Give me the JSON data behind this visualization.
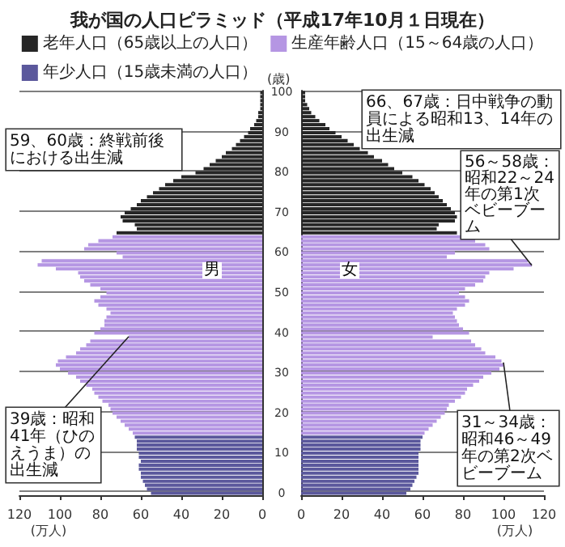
{
  "chart_data": [
    {
      "type": "bar",
      "orientation": "horizontal",
      "title": "我が国の人口ピラミッド（平成17年10月１日現在）",
      "ylabel": "(歳)",
      "xlabel": "(万人)",
      "categories": [
        "100",
        null,
        null,
        null,
        null,
        null,
        null,
        null,
        null,
        null,
        "90",
        null,
        null,
        null,
        null,
        null,
        null,
        null,
        null,
        null,
        "80",
        null,
        null,
        null,
        null,
        null,
        null,
        null,
        null,
        null,
        "70",
        null,
        null,
        null,
        null,
        null,
        null,
        null,
        null,
        null,
        "60",
        null,
        null,
        null,
        null,
        null,
        null,
        null,
        null,
        null,
        "50",
        null,
        null,
        null,
        null,
        null,
        null,
        null,
        null,
        null,
        "40",
        null,
        null,
        null,
        null,
        null,
        null,
        null,
        null,
        null,
        "30",
        null,
        null,
        null,
        null,
        null,
        null,
        null,
        null,
        null,
        "20",
        null,
        null,
        null,
        null,
        null,
        null,
        null,
        null,
        null,
        "10",
        null,
        null,
        null,
        null,
        null,
        null,
        null,
        null,
        null,
        "0"
      ],
      "series": [
        {
          "color": "#262626",
          "values": [
            1,
            1,
            1,
            1,
            1,
            2,
            2,
            3,
            4,
            6,
            7,
            9,
            11,
            13,
            15,
            18,
            20,
            23,
            26,
            29,
            33,
            40,
            44,
            48,
            51,
            54,
            57,
            60,
            62,
            65,
            68,
            70,
            69,
            63,
            62,
            72,
            null,
            null,
            null,
            null,
            null,
            null,
            null,
            null,
            null,
            null,
            null,
            null,
            null,
            null,
            null,
            null,
            null,
            null,
            null,
            null,
            null,
            null,
            null,
            null,
            null,
            null,
            null,
            null,
            null,
            null,
            null,
            null,
            null,
            null,
            null,
            null,
            null,
            null,
            null,
            null,
            null,
            null,
            null,
            null,
            null,
            null,
            null,
            null,
            null,
            null,
            null,
            null,
            null,
            null,
            null,
            null,
            null,
            null,
            null,
            null,
            null,
            null,
            null,
            null,
            null
          ]
        },
        {
          "color": "#b596e3",
          "values": [
            null,
            null,
            null,
            null,
            null,
            null,
            null,
            null,
            null,
            null,
            null,
            null,
            null,
            null,
            null,
            null,
            null,
            null,
            null,
            null,
            null,
            null,
            null,
            null,
            null,
            null,
            null,
            null,
            null,
            null,
            null,
            null,
            null,
            null,
            null,
            null,
            74,
            81,
            86,
            88,
            72,
            69,
            109,
            111,
            102,
            91,
            90,
            88,
            85,
            80,
            77,
            80,
            83,
            81,
            77,
            75,
            77,
            78,
            78,
            80,
            83,
            66,
            85,
            87,
            90,
            92,
            97,
            101,
            102,
            100,
            96,
            92,
            90,
            87,
            84,
            83,
            81,
            79,
            76,
            75,
            74,
            72,
            70,
            68,
            66,
            64,
            null,
            null,
            null,
            null,
            null,
            null,
            null,
            null,
            null,
            null,
            null,
            null,
            null,
            null,
            null
          ]
        },
        {
          "color": "#5b589c",
          "values": [
            null,
            null,
            null,
            null,
            null,
            null,
            null,
            null,
            null,
            null,
            null,
            null,
            null,
            null,
            null,
            null,
            null,
            null,
            null,
            null,
            null,
            null,
            null,
            null,
            null,
            null,
            null,
            null,
            null,
            null,
            null,
            null,
            null,
            null,
            null,
            null,
            null,
            null,
            null,
            null,
            null,
            null,
            null,
            null,
            null,
            null,
            null,
            null,
            null,
            null,
            null,
            null,
            null,
            null,
            null,
            null,
            null,
            null,
            null,
            null,
            null,
            null,
            null,
            null,
            null,
            null,
            null,
            null,
            null,
            null,
            null,
            null,
            null,
            null,
            null,
            null,
            null,
            null,
            null,
            null,
            null,
            null,
            null,
            null,
            null,
            null,
            63,
            62,
            62,
            62,
            61,
            61,
            60,
            61,
            61,
            60,
            60,
            59,
            58,
            57,
            55
          ]
        }
      ],
      "xlim": [
        120,
        0
      ],
      "xticks": [
        120,
        100,
        80,
        60,
        40,
        20,
        0
      ],
      "grid": "y",
      "annotations": [
        "59、60歳：終戦前後における出生減",
        {
          "text": "39歳：昭和41年（ひのえうま）の出生減",
          "x": 66
        },
        "男"
      ]
    },
    {
      "type": "bar",
      "orientation": "horizontal",
      "xlabel": "(万人)",
      "legend": "top",
      "tick_labels": "x",
      "categories": [
        "100",
        null,
        null,
        null,
        null,
        null,
        null,
        null,
        null,
        null,
        "90",
        null,
        null,
        null,
        null,
        null,
        null,
        null,
        null,
        null,
        "80",
        null,
        null,
        null,
        null,
        null,
        null,
        null,
        null,
        null,
        "70",
        null,
        null,
        null,
        null,
        null,
        null,
        null,
        null,
        null,
        "60",
        null,
        null,
        null,
        null,
        null,
        null,
        null,
        null,
        null,
        "50",
        null,
        null,
        null,
        null,
        null,
        null,
        null,
        null,
        null,
        "40",
        null,
        null,
        null,
        null,
        null,
        null,
        null,
        null,
        null,
        "30",
        null,
        null,
        null,
        null,
        null,
        null,
        null,
        null,
        null,
        "20",
        null,
        null,
        null,
        null,
        null,
        null,
        null,
        null,
        null,
        "10",
        null,
        null,
        null,
        null,
        null,
        null,
        null,
        null,
        null,
        "0"
      ],
      "series": [
        {
          "name": "老年人口（65歳以上の人口）",
          "color": "#262626",
          "values": [
            2,
            2,
            2,
            3,
            4,
            5,
            7,
            9,
            12,
            14,
            17,
            20,
            23,
            26,
            29,
            33,
            36,
            40,
            43,
            46,
            50,
            55,
            58,
            61,
            64,
            66,
            68,
            70,
            72,
            74,
            76,
            77,
            76,
            68,
            67,
            77,
            null,
            null,
            null,
            null,
            null,
            null,
            null,
            null,
            null,
            null,
            null,
            null,
            null,
            null,
            null,
            null,
            null,
            null,
            null,
            null,
            null,
            null,
            null,
            null,
            null,
            null,
            null,
            null,
            null,
            null,
            null,
            null,
            null,
            null,
            null,
            null,
            null,
            null,
            null,
            null,
            null,
            null,
            null,
            null,
            null,
            null,
            null,
            null,
            null,
            null,
            null,
            null,
            null,
            null,
            null,
            null,
            null,
            null,
            null,
            null,
            null,
            null,
            null,
            null,
            null
          ]
        },
        {
          "name": "生産年齢人口（15～64歳の人口）",
          "color": "#b596e3",
          "values": [
            null,
            null,
            null,
            null,
            null,
            null,
            null,
            null,
            null,
            null,
            null,
            null,
            null,
            null,
            null,
            null,
            null,
            null,
            null,
            null,
            null,
            null,
            null,
            null,
            null,
            null,
            null,
            null,
            null,
            null,
            null,
            null,
            null,
            null,
            null,
            null,
            79,
            86,
            91,
            93,
            76,
            72,
            112,
            114,
            105,
            93,
            91,
            90,
            86,
            81,
            78,
            81,
            83,
            81,
            77,
            75,
            76,
            77,
            78,
            80,
            83,
            65,
            84,
            86,
            89,
            91,
            96,
            99,
            100,
            98,
            94,
            90,
            88,
            85,
            82,
            81,
            79,
            76,
            73,
            72,
            71,
            69,
            67,
            65,
            63,
            61,
            null,
            null,
            null,
            null,
            null,
            null,
            null,
            null,
            null,
            null,
            null,
            null,
            null,
            null,
            null
          ]
        },
        {
          "name": "年少人口（15歳未満の人口）",
          "color": "#5b589c",
          "values": [
            null,
            null,
            null,
            null,
            null,
            null,
            null,
            null,
            null,
            null,
            null,
            null,
            null,
            null,
            null,
            null,
            null,
            null,
            null,
            null,
            null,
            null,
            null,
            null,
            null,
            null,
            null,
            null,
            null,
            null,
            null,
            null,
            null,
            null,
            null,
            null,
            null,
            null,
            null,
            null,
            null,
            null,
            null,
            null,
            null,
            null,
            null,
            null,
            null,
            null,
            null,
            null,
            null,
            null,
            null,
            null,
            null,
            null,
            null,
            null,
            null,
            null,
            null,
            null,
            null,
            null,
            null,
            null,
            null,
            null,
            null,
            null,
            null,
            null,
            null,
            null,
            null,
            null,
            null,
            null,
            null,
            null,
            null,
            null,
            null,
            null,
            60,
            59,
            59,
            59,
            58,
            58,
            58,
            58,
            58,
            58,
            57,
            56,
            55,
            54,
            52
          ]
        }
      ],
      "xlim": [
        0,
        120
      ],
      "xticks": [
        0,
        20,
        40,
        60,
        80,
        100,
        120
      ],
      "grid": "y",
      "annotations": [
        "66、67歳：日中戦争の動員による昭和13、14年の出生減",
        {
          "text": "56～58歳：昭和22～24年の第1次ベビーブーム",
          "x": 114
        },
        {
          "text": "31～34歳：昭和46～49年の第2次ベビーブーム",
          "x": 100
        },
        "女"
      ]
    }
  ]
}
